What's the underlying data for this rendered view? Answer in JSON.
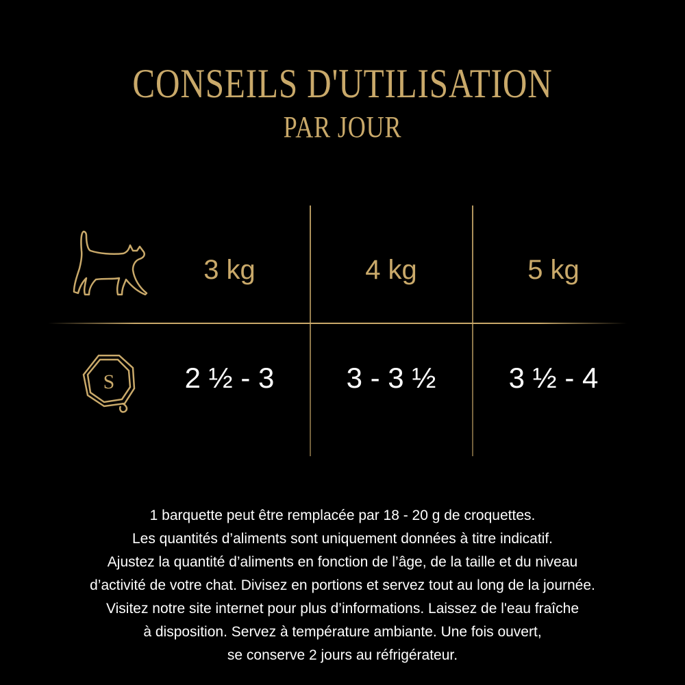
{
  "title": "CONSEILS D'UTILISATION",
  "subtitle": "PAR JOUR",
  "accent_color": "#c9a96a",
  "table": {
    "row_icons": [
      "cat-icon",
      "seal-s-icon"
    ],
    "seal_letter": "S",
    "weights": [
      "3 kg",
      "4 kg",
      "5 kg"
    ],
    "portions": [
      "2 ½ - 3",
      "3 - 3 ½",
      "3 ½ - 4"
    ]
  },
  "notes": [
    "1 barquette peut être remplacée par 18 - 20 g de croquettes.",
    "Les quantités d’aliments sont uniquement données à titre indicatif.",
    "Ajustez la quantité d’aliments en fonction de l’âge, de la taille et du niveau",
    "d’activité de votre chat. Divisez en portions et servez tout au long de la journée.",
    "Visitez notre site internet pour plus d’informations. Laissez de l'eau fraîche",
    "à disposition. Servez à température ambiante. Une fois ouvert,",
    "se conserve 2 jours au réfrigérateur."
  ]
}
